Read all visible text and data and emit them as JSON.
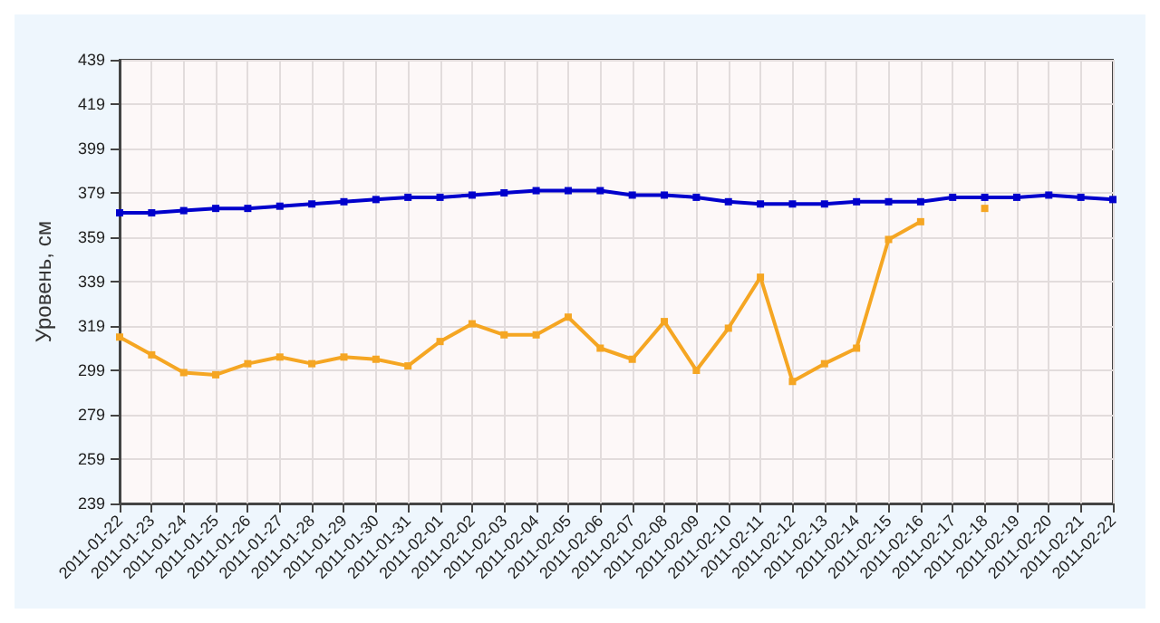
{
  "chart_data": {
    "type": "line",
    "ylabel": "Уровень, см",
    "x": [
      "2011-01-22",
      "2011-01-23",
      "2011-01-24",
      "2011-01-25",
      "2011-01-26",
      "2011-01-27",
      "2011-01-28",
      "2011-01-29",
      "2011-01-30",
      "2011-01-31",
      "2011-02-01",
      "2011-02-02",
      "2011-02-03",
      "2011-02-04",
      "2011-02-05",
      "2011-02-06",
      "2011-02-07",
      "2011-02-08",
      "2011-02-09",
      "2011-02-10",
      "2011-02-11",
      "2011-02-12",
      "2011-02-13",
      "2011-02-14",
      "2011-02-15",
      "2011-02-16",
      "2011-02-17",
      "2011-02-18",
      "2011-02-19",
      "2011-02-20",
      "2011-02-21",
      "2011-02-22"
    ],
    "series": [
      {
        "color": "#0000cc",
        "values": [
          370,
          370,
          371,
          372,
          372,
          373,
          374,
          375,
          376,
          377,
          377,
          378,
          379,
          380,
          380,
          380,
          378,
          378,
          377,
          375,
          374,
          374,
          374,
          375,
          375,
          375,
          377,
          377,
          377,
          378,
          377,
          376
        ]
      },
      {
        "color": "#f5a623",
        "values": [
          314,
          306,
          298,
          297,
          302,
          305,
          302,
          305,
          304,
          301,
          312,
          320,
          315,
          315,
          323,
          309,
          304,
          321,
          299,
          318,
          341,
          294,
          302,
          309,
          358,
          366,
          null,
          372,
          null,
          null,
          null,
          null
        ]
      }
    ],
    "ylim": [
      239,
      439
    ],
    "yticks": [
      239,
      259,
      279,
      299,
      319,
      339,
      359,
      379,
      399,
      419,
      439
    ],
    "grid": true,
    "marker": "square",
    "line_style": "solid"
  }
}
